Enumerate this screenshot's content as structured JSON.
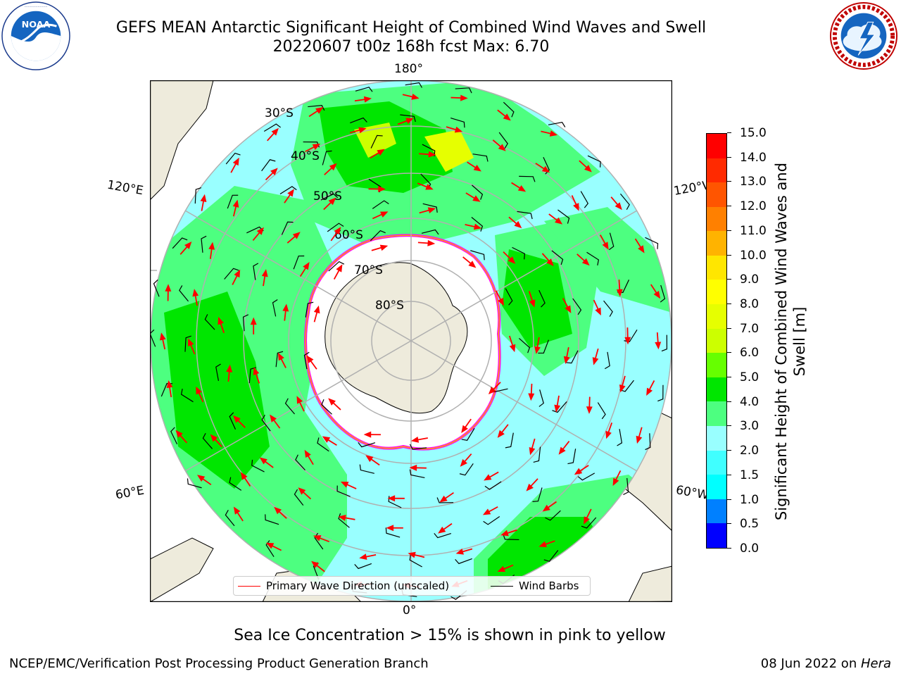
{
  "title": {
    "line1": "GEFS MEAN Antarctic Significant Height of Combined Wind Waves and Swell",
    "line2": "20220607 t00z 168h fcst   Max: 6.70"
  },
  "logos": {
    "noaa": {
      "text": "NOAA",
      "ring_text": "NATIONAL OCEANIC AND ATMOSPHERIC ADMINISTRATION · U.S. DEPARTMENT OF COMMERCE"
    },
    "nws": {
      "ring_text": "NATIONAL WEATHER SERVICE"
    }
  },
  "map": {
    "projection": "south polar stereographic",
    "longitude_labels": {
      "top": "180°",
      "bottom": "0°",
      "upper_left": "120°E",
      "lower_left": "60°E",
      "upper_right": "120°W",
      "lower_right": "60°W"
    },
    "latitude_labels": [
      "30°S",
      "40°S",
      "50°S",
      "60°S",
      "70°S",
      "80°S"
    ],
    "colors": {
      "land": "#eeebdc",
      "ocean_outside": "#ffffff",
      "ice_edge": "#ff00ff",
      "ice_inner": "#ffa500",
      "graticule": "#b0b0b0"
    }
  },
  "colorbar": {
    "label": "Significant Height of Combined Wind Waves and Swell [m]",
    "ticks": [
      "0.0",
      "0.5",
      "1.0",
      "1.5",
      "2.0",
      "3.0",
      "4.0",
      "5.0",
      "6.0",
      "7.0",
      "8.0",
      "9.0",
      "10.0",
      "11.0",
      "12.0",
      "13.0",
      "14.0",
      "15.0"
    ],
    "colors": [
      "#0000ff",
      "#0080ff",
      "#00ffff",
      "#40ffff",
      "#99ffff",
      "#4dff80",
      "#00e600",
      "#66ff00",
      "#ccff00",
      "#e6ff00",
      "#ffff00",
      "#ffe600",
      "#ffb300",
      "#ff8000",
      "#ff5500",
      "#ff2a00",
      "#ff0000"
    ]
  },
  "legend": {
    "wave_direction": "Primary Wave Direction (unscaled)",
    "wind_barbs": "Wind Barbs"
  },
  "note": "Sea Ice Concentration > 15% is shown in pink to yellow",
  "footer": {
    "left": "NCEP/EMC/Verification Post Processing Product Generation Branch",
    "right_date": "08 Jun 2022 on ",
    "right_host": "Hera"
  }
}
